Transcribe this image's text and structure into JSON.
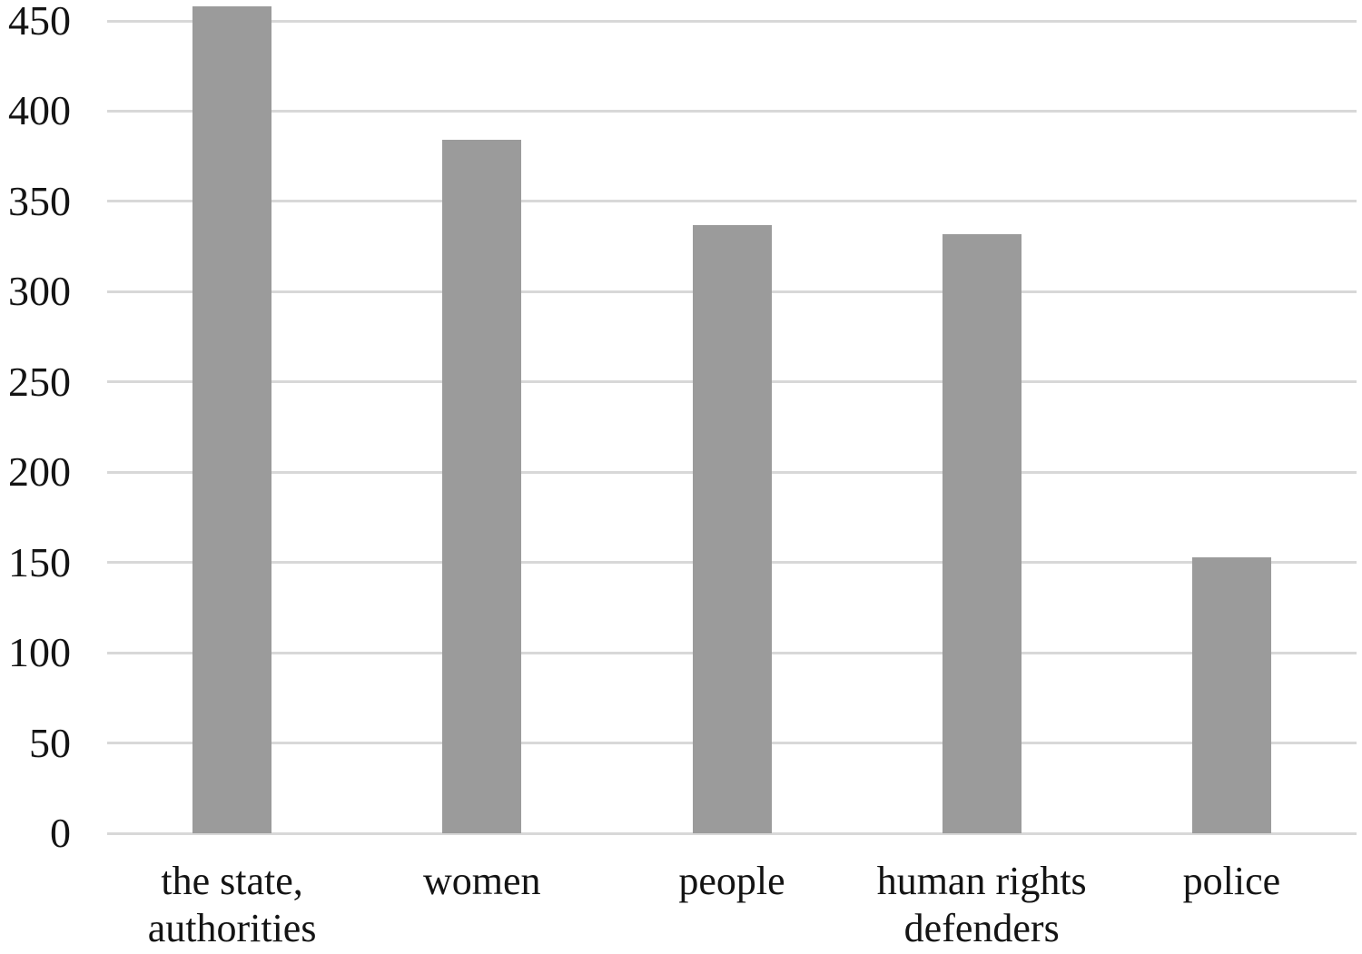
{
  "figure": {
    "kind": "standalone bar chart figure",
    "background": "#ffffff"
  },
  "chart_data": {
    "type": "bar",
    "title": "",
    "xlabel": "",
    "ylabel": "",
    "categories": [
      "the state,\nauthorities",
      "women",
      "people",
      "human rights\ndefenders",
      "police"
    ],
    "values": [
      458,
      384,
      337,
      332,
      153
    ],
    "ylim": [
      0,
      450
    ],
    "ytick_step": 50,
    "yticks": [
      "0",
      "50",
      "100",
      "150",
      "200",
      "250",
      "300",
      "350",
      "400",
      "450"
    ],
    "grid": "horizontal gridlines only, no vertical axis line",
    "legend": "none",
    "bar_color": "#9b9b9b",
    "gridline_color": "#d8d8d8",
    "text_color": "#141414"
  }
}
